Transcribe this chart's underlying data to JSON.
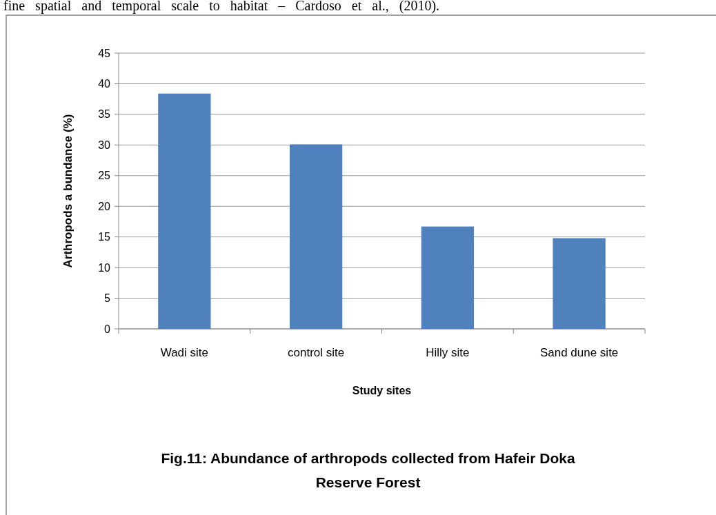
{
  "chart_data": {
    "type": "bar",
    "title": "Fig.11: Abundance of arthropods collected from Hafeir  Doka Reserve Forest",
    "xlabel": "Study sites",
    "ylabel": "Arthropods a bundance (%)",
    "categories": [
      "Wadi site",
      "control site",
      "Hilly site",
      "Sand dune site"
    ],
    "values": [
      38.4,
      30.1,
      16.7,
      14.8
    ],
    "color": "#4f81bd",
    "ylim": [
      0,
      45
    ],
    "yticks": [
      0,
      5,
      10,
      15,
      20,
      25,
      30,
      35,
      40,
      45
    ],
    "grid": "y",
    "annotations": [
      "fine spatial and temporal scale to habitat – Cardoso et al., (2010)."
    ]
  }
}
